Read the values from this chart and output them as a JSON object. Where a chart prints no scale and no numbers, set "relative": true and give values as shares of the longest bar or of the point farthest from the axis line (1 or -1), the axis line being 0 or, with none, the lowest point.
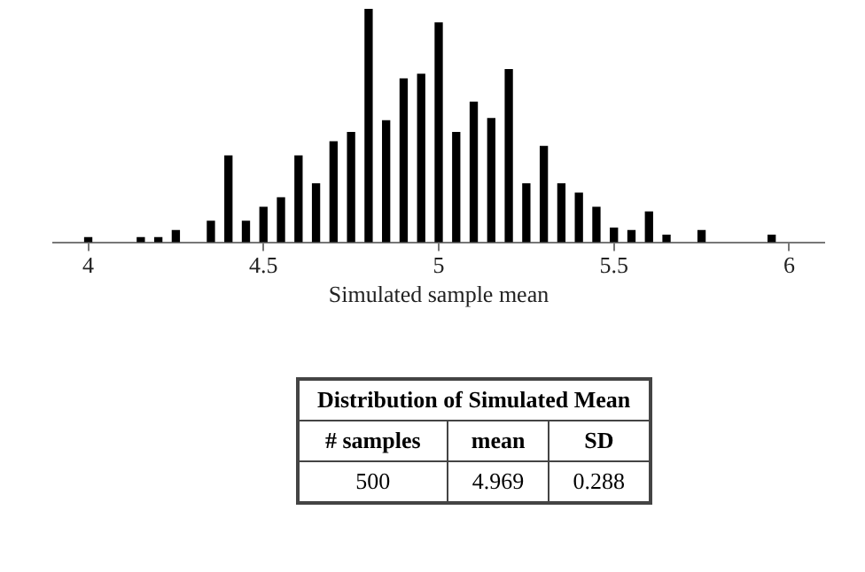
{
  "chart_data": {
    "type": "bar",
    "relative": true,
    "xlabel": "Simulated sample mean",
    "x": [
      4.0,
      4.15,
      4.2,
      4.25,
      4.35,
      4.4,
      4.45,
      4.5,
      4.55,
      4.6,
      4.65,
      4.7,
      4.75,
      4.8,
      4.85,
      4.9,
      4.95,
      5.0,
      5.05,
      5.1,
      5.15,
      5.2,
      5.25,
      5.3,
      5.35,
      5.4,
      5.45,
      5.5,
      5.55,
      5.6,
      5.65,
      5.75,
      5.95
    ],
    "values": [
      0.02,
      0.02,
      0.02,
      0.05,
      0.09,
      0.37,
      0.09,
      0.15,
      0.19,
      0.37,
      0.25,
      0.43,
      0.47,
      1,
      0.52,
      0.7,
      0.72,
      0.94,
      0.47,
      0.6,
      0.53,
      0.74,
      0.25,
      0.41,
      0.25,
      0.21,
      0.15,
      0.06,
      0.05,
      0.13,
      0.03,
      0.05,
      0.03
    ],
    "color": "#000000",
    "xlim": [
      3.9,
      6.1
    ],
    "xticks": [
      4,
      4.5,
      5,
      5.5,
      6
    ],
    "grid": false,
    "legend": false,
    "annotations": [
      "Distribution of Simulated Mean",
      "# samples",
      "mean",
      "SD",
      "500",
      "4.969",
      "0.288"
    ]
  }
}
